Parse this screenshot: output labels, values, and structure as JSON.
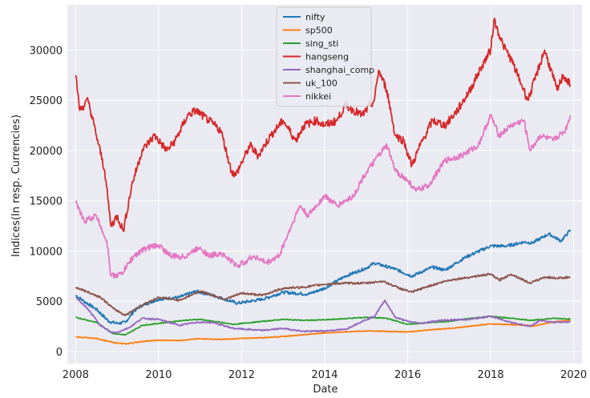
{
  "chart_data": {
    "type": "line",
    "xlabel": "Date",
    "ylabel": "Indices(In resp. Currencies)",
    "xlim": [
      2007.8,
      2020.2
    ],
    "ylim": [
      -1200,
      34500
    ],
    "xticks": [
      2008,
      2010,
      2012,
      2014,
      2016,
      2018,
      2020
    ],
    "yticks": [
      0,
      5000,
      10000,
      15000,
      20000,
      25000,
      30000
    ],
    "grid": true,
    "background": "#eaeaf2",
    "legend_position": "top-center",
    "series": [
      {
        "name": "nifty",
        "color": "#1f77b4",
        "x": [
          2008.0,
          2008.2,
          2008.5,
          2008.8,
          2009.0,
          2009.2,
          2009.4,
          2009.6,
          2010.0,
          2010.5,
          2010.9,
          2011.3,
          2011.9,
          2012.5,
          2013.0,
          2013.6,
          2014.0,
          2014.5,
          2015.0,
          2015.2,
          2015.7,
          2016.1,
          2016.6,
          2016.9,
          2017.4,
          2018.0,
          2018.4,
          2018.8,
          2019.0,
          2019.4,
          2019.7,
          2019.92
        ],
        "y": [
          5600,
          5000,
          4200,
          3000,
          2800,
          2900,
          4000,
          4600,
          5200,
          5400,
          6000,
          5600,
          4800,
          5200,
          5900,
          5700,
          6300,
          7500,
          8300,
          8800,
          8200,
          7500,
          8400,
          8100,
          9400,
          10500,
          10500,
          10900,
          10800,
          11700,
          11000,
          12100
        ]
      },
      {
        "name": "sp500",
        "color": "#ff7f0e",
        "x": [
          2008.0,
          2008.5,
          2008.9,
          2009.2,
          2009.6,
          2010.0,
          2010.5,
          2011.0,
          2011.5,
          2012.0,
          2012.5,
          2013.0,
          2014.0,
          2015.0,
          2015.6,
          2016.0,
          2016.5,
          2017.0,
          2018.0,
          2018.9,
          2019.0,
          2019.5,
          2019.92
        ],
        "y": [
          1450,
          1300,
          900,
          750,
          1000,
          1120,
          1100,
          1280,
          1200,
          1300,
          1380,
          1500,
          1850,
          2050,
          2000,
          1950,
          2150,
          2280,
          2750,
          2600,
          2500,
          2950,
          3100
        ]
      },
      {
        "name": "sing_sti",
        "color": "#2ca02c",
        "x": [
          2008.0,
          2008.5,
          2008.9,
          2009.2,
          2009.6,
          2010.0,
          2010.6,
          2011.0,
          2011.8,
          2012.5,
          2013.0,
          2013.5,
          2014.0,
          2014.6,
          2015.0,
          2015.5,
          2016.0,
          2016.6,
          2017.0,
          2017.5,
          2018.0,
          2018.5,
          2019.0,
          2019.5,
          2019.92
        ],
        "y": [
          3400,
          2900,
          1800,
          1650,
          2600,
          2800,
          3100,
          3200,
          2700,
          3000,
          3200,
          3100,
          3150,
          3300,
          3400,
          3300,
          2700,
          2900,
          3000,
          3300,
          3500,
          3300,
          3100,
          3300,
          3250
        ]
      },
      {
        "name": "hangseng",
        "color": "#d62728",
        "x": [
          2008.0,
          2008.1,
          2008.3,
          2008.5,
          2008.7,
          2008.85,
          2009.0,
          2009.15,
          2009.35,
          2009.6,
          2009.9,
          2010.2,
          2010.4,
          2010.7,
          2010.9,
          2011.2,
          2011.5,
          2011.75,
          2011.85,
          2012.2,
          2012.4,
          2012.7,
          2013.0,
          2013.3,
          2013.5,
          2013.8,
          2014.0,
          2014.3,
          2014.5,
          2014.9,
          2015.2,
          2015.3,
          2015.5,
          2015.7,
          2015.9,
          2016.1,
          2016.3,
          2016.6,
          2016.9,
          2017.2,
          2017.5,
          2017.8,
          2018.0,
          2018.08,
          2018.3,
          2018.5,
          2018.8,
          2018.9,
          2019.1,
          2019.3,
          2019.6,
          2019.75,
          2019.92
        ],
        "y": [
          27500,
          24000,
          25000,
          21500,
          18000,
          12500,
          13500,
          12000,
          16500,
          20000,
          21500,
          20000,
          21000,
          23500,
          24000,
          23000,
          22000,
          18000,
          17500,
          20500,
          19500,
          21500,
          23000,
          21000,
          22500,
          23000,
          22500,
          23000,
          24500,
          23500,
          25000,
          28000,
          26000,
          21500,
          21000,
          18500,
          20500,
          23000,
          22500,
          24000,
          26000,
          28500,
          30000,
          33000,
          30500,
          29000,
          26000,
          25000,
          27500,
          30000,
          26000,
          27500,
          26500
        ]
      },
      {
        "name": "shanghai_comp",
        "color": "#9467bd",
        "x": [
          2008.0,
          2008.3,
          2008.6,
          2008.85,
          2009.0,
          2009.3,
          2009.6,
          2010.0,
          2010.5,
          2010.9,
          2011.3,
          2011.8,
          2012.5,
          2013.0,
          2013.5,
          2014.0,
          2014.5,
          2014.9,
          2015.2,
          2015.45,
          2015.7,
          2016.0,
          2016.3,
          2016.8,
          2017.5,
          2018.0,
          2018.5,
          2018.95,
          2019.2,
          2019.5,
          2019.92
        ],
        "y": [
          5400,
          4200,
          2600,
          1900,
          1900,
          2400,
          3300,
          3200,
          2600,
          2900,
          2900,
          2300,
          2100,
          2300,
          2000,
          2050,
          2200,
          3000,
          3500,
          5100,
          3400,
          3000,
          2800,
          3100,
          3200,
          3500,
          2900,
          2500,
          3100,
          2900,
          2950
        ]
      },
      {
        "name": "uk_100",
        "color": "#8c564b",
        "x": [
          2008.0,
          2008.3,
          2008.6,
          2008.9,
          2009.2,
          2009.5,
          2010.0,
          2010.5,
          2011.0,
          2011.6,
          2012.0,
          2012.5,
          2013.0,
          2013.5,
          2014.0,
          2014.5,
          2015.0,
          2015.4,
          2015.8,
          2016.1,
          2016.5,
          2017.0,
          2017.5,
          2018.0,
          2018.2,
          2018.5,
          2018.95,
          2019.3,
          2019.6,
          2019.92
        ],
        "y": [
          6400,
          5900,
          5400,
          4300,
          3600,
          4400,
          5400,
          5100,
          6000,
          5200,
          5800,
          5600,
          6300,
          6400,
          6700,
          6800,
          6800,
          7000,
          6300,
          5900,
          6500,
          7100,
          7400,
          7700,
          7100,
          7700,
          6800,
          7400,
          7300,
          7400
        ]
      },
      {
        "name": "nikkei",
        "color": "#e377c2",
        "x": [
          2008.0,
          2008.2,
          2008.5,
          2008.75,
          2008.85,
          2009.1,
          2009.4,
          2009.7,
          2010.0,
          2010.3,
          2010.6,
          2011.0,
          2011.2,
          2011.5,
          2011.9,
          2012.3,
          2012.6,
          2012.9,
          2013.1,
          2013.4,
          2013.6,
          2014.0,
          2014.3,
          2014.7,
          2014.95,
          2015.3,
          2015.5,
          2015.7,
          2016.0,
          2016.2,
          2016.5,
          2016.9,
          2017.3,
          2017.7,
          2018.0,
          2018.2,
          2018.5,
          2018.8,
          2018.95,
          2019.2,
          2019.5,
          2019.8,
          2019.92
        ],
        "y": [
          14800,
          13000,
          13500,
          11000,
          7500,
          7700,
          9500,
          10300,
          10600,
          9500,
          9400,
          10400,
          9500,
          9800,
          8500,
          9500,
          8800,
          9500,
          11500,
          14500,
          13500,
          15500,
          14500,
          15500,
          17500,
          19500,
          20500,
          18000,
          17000,
          16000,
          16500,
          19000,
          19500,
          20500,
          23500,
          21500,
          22500,
          23000,
          20000,
          21500,
          21000,
          22000,
          23500
        ]
      }
    ]
  }
}
